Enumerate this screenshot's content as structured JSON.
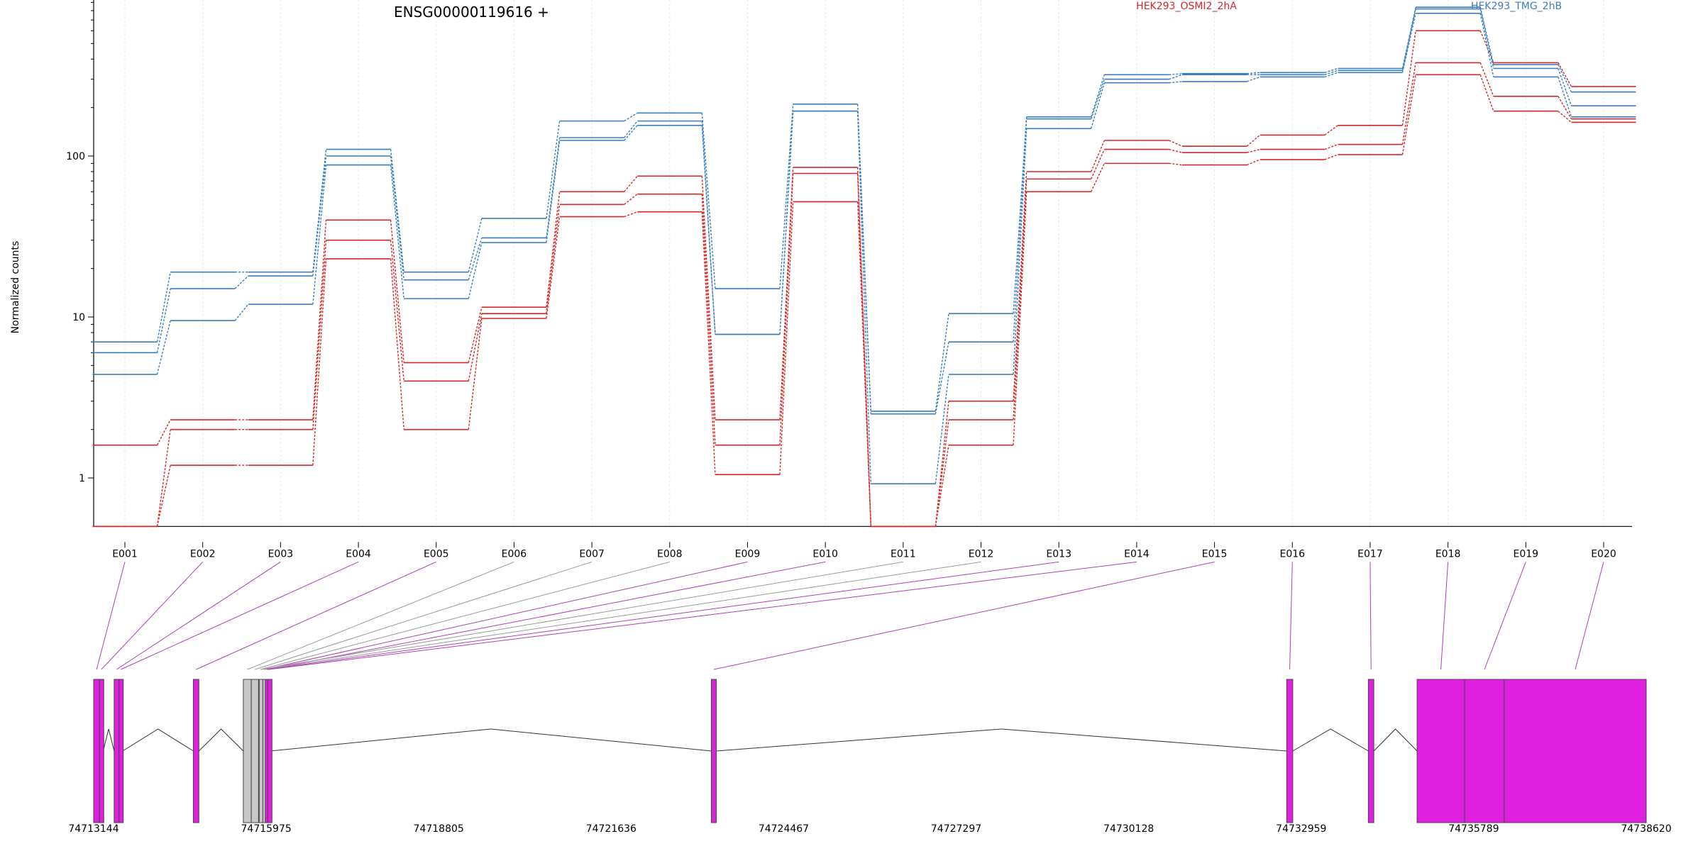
{
  "chart_data": {
    "type": "line",
    "title": "ENSG00000119616 +",
    "xlabel": "",
    "ylabel": "Normalized counts",
    "yscale": "log",
    "ylim": [
      0.5,
      1000
    ],
    "yticks": [
      "1",
      "10",
      "100",
      "1000"
    ],
    "grid": true,
    "legend_position": "top",
    "colors": {
      "HEK293_OSMI2_2hA": "#d62728",
      "HEK293_TMG_2hB": "#3a7ebf",
      "exon": "#e020e0",
      "exon_inactive": "#c8c8c8"
    },
    "categories": [
      "E001",
      "E002",
      "E003",
      "E004",
      "E005",
      "E006",
      "E007",
      "E008",
      "E009",
      "E010",
      "E011",
      "E012",
      "E013",
      "E014",
      "E015",
      "E016",
      "E017",
      "E018",
      "E019",
      "E020"
    ],
    "series": [
      {
        "name": "HEK293_OSMI2_2hA",
        "group": "HEK293_OSMI2_2hA",
        "values": [
          1.6,
          2.3,
          2.3,
          40,
          5.2,
          11.5,
          60,
          75,
          2.3,
          85,
          0.5,
          3,
          80,
          125,
          115,
          135,
          155,
          600,
          380,
          270
        ]
      },
      {
        "name": "",
        "group": "HEK293_OSMI2_2hA",
        "values": [
          0.5,
          2,
          2,
          30,
          4,
          10.5,
          50,
          58,
          1.6,
          78,
          0.5,
          2.3,
          72,
          110,
          105,
          110,
          118,
          380,
          235,
          170
        ]
      },
      {
        "name": "",
        "group": "HEK293_OSMI2_2hA",
        "values": [
          0.5,
          1.2,
          1.2,
          23,
          2,
          9.8,
          42,
          45,
          1.05,
          52,
          0.5,
          1.6,
          60,
          90,
          88,
          95,
          102,
          320,
          190,
          162
        ]
      },
      {
        "name": "HEK293_TMG_2hB",
        "group": "HEK293_TMG_2hB",
        "values": [
          7,
          19,
          19,
          110,
          19,
          41,
          165,
          185,
          15,
          210,
          2.6,
          10.5,
          175,
          320,
          325,
          330,
          350,
          840,
          370,
          250
        ]
      },
      {
        "name": "",
        "group": "HEK293_TMG_2hB",
        "values": [
          6,
          15,
          18,
          100,
          17,
          31,
          130,
          165,
          7.8,
          190,
          2.5,
          7,
          170,
          300,
          320,
          320,
          340,
          820,
          350,
          205
        ]
      },
      {
        "name": "",
        "group": "HEK293_TMG_2hB",
        "values": [
          4.4,
          9.5,
          12,
          88,
          13,
          29,
          125,
          155,
          7.8,
          190,
          0.92,
          4.4,
          148,
          285,
          290,
          310,
          330,
          770,
          310,
          175
        ]
      }
    ],
    "gene_model": {
      "coordinate_ticks": [
        "74713144",
        "74715975",
        "74718805",
        "74721636",
        "74724467",
        "74727297",
        "74730128",
        "74732959",
        "74735789",
        "74738620"
      ],
      "axis_range": [
        74713144,
        74738620
      ],
      "exons": [
        {
          "id": "E001",
          "start": 74713144,
          "end": 74713240
        },
        {
          "id": "E002",
          "start": 74713240,
          "end": 74713300
        },
        {
          "id": "E003",
          "start": 74713480,
          "end": 74713560
        },
        {
          "id": "E004",
          "start": 74713560,
          "end": 74713620
        },
        {
          "id": "E005",
          "start": 74714780,
          "end": 74714870
        },
        {
          "id": "E006",
          "start": 74715600,
          "end": 74715730,
          "inactive": true
        },
        {
          "id": "E007",
          "start": 74715730,
          "end": 74715850,
          "inactive": true
        },
        {
          "id": "E008",
          "start": 74715850,
          "end": 74715910,
          "inactive": true
        },
        {
          "id": "E009",
          "start": 74715910,
          "end": 74715975
        },
        {
          "id": "E010",
          "start": 74715975,
          "end": 74716040
        },
        {
          "id": "E011",
          "start": 74715860,
          "end": 74715920,
          "inactive": true
        },
        {
          "id": "E012",
          "start": 74715920,
          "end": 74715960,
          "inactive": true
        },
        {
          "id": "E013",
          "start": 74715960,
          "end": 74716000
        },
        {
          "id": "E014",
          "start": 74716000,
          "end": 74716040
        },
        {
          "id": "E015",
          "start": 74723280,
          "end": 74723360
        },
        {
          "id": "E016",
          "start": 74732720,
          "end": 74732820
        },
        {
          "id": "E017",
          "start": 74734060,
          "end": 74734150
        },
        {
          "id": "E018",
          "start": 74734860,
          "end": 74735640
        },
        {
          "id": "E019",
          "start": 74735640,
          "end": 74736290
        },
        {
          "id": "E020",
          "start": 74736290,
          "end": 74738620
        }
      ]
    }
  }
}
